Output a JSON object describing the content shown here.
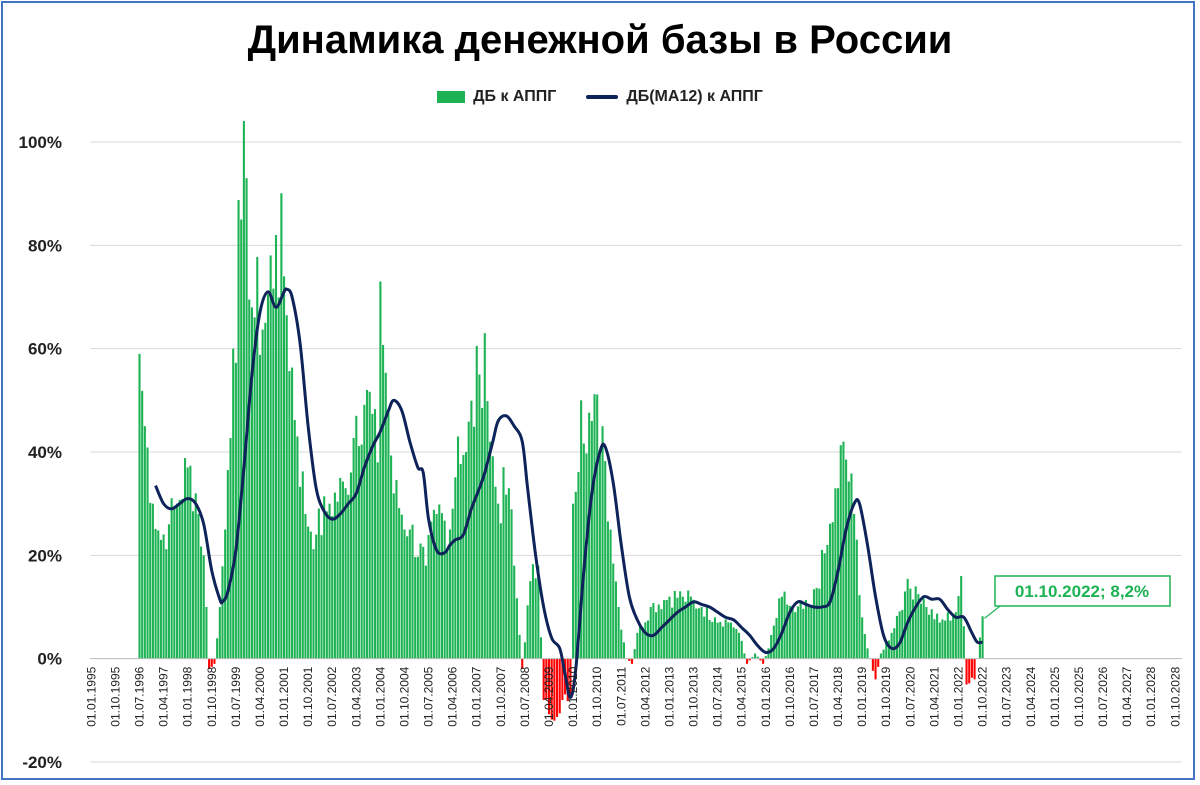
{
  "chart_data": {
    "type": "bar",
    "title": "Динамика денежной базы в России",
    "series": [
      {
        "name": "ДБ к АППГ",
        "kind": "bar",
        "color": "#1db354",
        "negative_color": "#ff0000"
      },
      {
        "name": "ДБ(МА12) к АППГ",
        "kind": "line",
        "color": "#0d2359"
      }
    ],
    "ylim": [
      -0.2,
      1.0
    ],
    "yticks": [
      "-20%",
      "0%",
      "20%",
      "40%",
      "60%",
      "80%",
      "100%"
    ],
    "ytick_values": [
      -0.2,
      0,
      0.2,
      0.4,
      0.6,
      0.8,
      1.0
    ],
    "x_range": [
      "1995-01",
      "2028-12"
    ],
    "xtick_labels": [
      "01.01.1995",
      "01.10.1995",
      "01.07.1996",
      "01.04.1997",
      "01.01.1998",
      "01.10.1998",
      "01.07.1999",
      "01.04.2000",
      "01.01.2001",
      "01.10.2001",
      "01.07.2002",
      "01.04.2003",
      "01.01.2004",
      "01.10.2004",
      "01.07.2005",
      "01.04.2006",
      "01.01.2007",
      "01.10.2007",
      "01.07.2008",
      "01.04.2009",
      "01.01.2010",
      "01.10.2010",
      "01.07.2011",
      "01.04.2012",
      "01.01.2013",
      "01.10.2013",
      "01.07.2014",
      "01.04.2015",
      "01.01.2016",
      "01.10.2016",
      "01.07.2017",
      "01.04.2018",
      "01.01.2019",
      "01.10.2019",
      "01.07.2020",
      "01.04.2021",
      "01.01.2022",
      "01.10.2022",
      "01.07.2023",
      "01.04.2024",
      "01.01.2025",
      "01.10.2025",
      "01.07.2026",
      "01.04.2027",
      "01.01.2028",
      "01.10.2028"
    ],
    "bar_keypoints": [
      [
        "1996-07",
        0.59
      ],
      [
        "1996-09",
        0.45
      ],
      [
        "1996-12",
        0.3
      ],
      [
        "1997-03",
        0.23
      ],
      [
        "1997-06",
        0.26
      ],
      [
        "1997-09",
        0.3
      ],
      [
        "1998-01",
        0.37
      ],
      [
        "1998-04",
        0.32
      ],
      [
        "1998-07",
        0.2
      ],
      [
        "1998-08",
        0.1
      ],
      [
        "1998-09",
        -0.02
      ],
      [
        "1998-11",
        -0.01
      ],
      [
        "1999-01",
        0.1
      ],
      [
        "1999-03",
        0.25
      ],
      [
        "1999-06",
        0.6
      ],
      [
        "1999-09",
        0.85
      ],
      [
        "1999-11",
        0.93
      ],
      [
        "2000-01",
        0.68
      ],
      [
        "2000-06",
        0.65
      ],
      [
        "2000-10",
        0.82
      ],
      [
        "2001-01",
        0.74
      ],
      [
        "2001-06",
        0.43
      ],
      [
        "2001-09",
        0.28
      ],
      [
        "2002-01",
        0.24
      ],
      [
        "2002-06",
        0.3
      ],
      [
        "2002-12",
        0.33
      ],
      [
        "2003-04",
        0.47
      ],
      [
        "2003-08",
        0.52
      ],
      [
        "2003-12",
        0.38
      ],
      [
        "2004-01",
        0.73
      ],
      [
        "2004-06",
        0.32
      ],
      [
        "2004-12",
        0.25
      ],
      [
        "2005-06",
        0.18
      ],
      [
        "2005-10",
        0.28
      ],
      [
        "2006-03",
        0.25
      ],
      [
        "2006-06",
        0.43
      ],
      [
        "2006-09",
        0.4
      ],
      [
        "2007-02",
        0.55
      ],
      [
        "2007-04",
        0.63
      ],
      [
        "2007-06",
        0.42
      ],
      [
        "2007-09",
        0.3
      ],
      [
        "2008-01",
        0.33
      ],
      [
        "2008-03",
        0.18
      ],
      [
        "2008-06",
        -0.02
      ],
      [
        "2008-09",
        0.15
      ],
      [
        "2008-12",
        0.18
      ],
      [
        "2009-02",
        -0.08
      ],
      [
        "2009-06",
        -0.12
      ],
      [
        "2009-09",
        -0.08
      ],
      [
        "2009-12",
        -0.07
      ],
      [
        "2010-01",
        0.3
      ],
      [
        "2010-04",
        0.5
      ],
      [
        "2010-08",
        0.46
      ],
      [
        "2010-12",
        0.45
      ],
      [
        "2011-03",
        0.25
      ],
      [
        "2011-06",
        0.1
      ],
      [
        "2011-09",
        0.0
      ],
      [
        "2011-11",
        -0.01
      ],
      [
        "2012-01",
        0.05
      ],
      [
        "2012-06",
        0.1
      ],
      [
        "2013-01",
        0.12
      ],
      [
        "2013-06",
        0.12
      ],
      [
        "2014-01",
        0.1
      ],
      [
        "2014-06",
        0.08
      ],
      [
        "2014-12",
        0.07
      ],
      [
        "2015-03",
        0.05
      ],
      [
        "2015-06",
        -0.01
      ],
      [
        "2015-09",
        0.01
      ],
      [
        "2015-12",
        -0.01
      ],
      [
        "2016-02",
        0.02
      ],
      [
        "2016-07",
        0.12
      ],
      [
        "2016-12",
        0.09
      ],
      [
        "2017-06",
        0.1
      ],
      [
        "2017-12",
        0.22
      ],
      [
        "2018-04",
        0.33
      ],
      [
        "2018-06",
        0.42
      ],
      [
        "2018-10",
        0.28
      ],
      [
        "2019-01",
        0.08
      ],
      [
        "2019-03",
        0.02
      ],
      [
        "2019-06",
        -0.04
      ],
      [
        "2019-08",
        0.01
      ],
      [
        "2019-12",
        0.05
      ],
      [
        "2020-05",
        0.13
      ],
      [
        "2020-09",
        0.14
      ],
      [
        "2021-01",
        0.1
      ],
      [
        "2021-06",
        0.07
      ],
      [
        "2021-12",
        0.09
      ],
      [
        "2022-02",
        0.16
      ],
      [
        "2022-04",
        -0.05
      ],
      [
        "2022-07",
        -0.04
      ],
      [
        "2022-10",
        0.082
      ]
    ],
    "ma_keypoints": [
      [
        "1997-01",
        0.335
      ],
      [
        "1997-04",
        0.3
      ],
      [
        "1997-07",
        0.29
      ],
      [
        "1997-10",
        0.3
      ],
      [
        "1998-01",
        0.31
      ],
      [
        "1998-04",
        0.3
      ],
      [
        "1998-07",
        0.26
      ],
      [
        "1998-10",
        0.17
      ],
      [
        "1999-01",
        0.115
      ],
      [
        "1999-02",
        0.11
      ],
      [
        "1999-04",
        0.13
      ],
      [
        "1999-07",
        0.21
      ],
      [
        "1999-10",
        0.37
      ],
      [
        "2000-01",
        0.55
      ],
      [
        "2000-04",
        0.67
      ],
      [
        "2000-07",
        0.71
      ],
      [
        "2000-10",
        0.68
      ],
      [
        "2001-01",
        0.71
      ],
      [
        "2001-02",
        0.715
      ],
      [
        "2001-04",
        0.7
      ],
      [
        "2001-07",
        0.61
      ],
      [
        "2001-10",
        0.45
      ],
      [
        "2002-01",
        0.33
      ],
      [
        "2002-04",
        0.285
      ],
      [
        "2002-07",
        0.27
      ],
      [
        "2002-10",
        0.28
      ],
      [
        "2003-01",
        0.3
      ],
      [
        "2003-04",
        0.32
      ],
      [
        "2003-07",
        0.37
      ],
      [
        "2003-10",
        0.41
      ],
      [
        "2004-01",
        0.44
      ],
      [
        "2004-04",
        0.48
      ],
      [
        "2004-06",
        0.5
      ],
      [
        "2004-09",
        0.48
      ],
      [
        "2004-12",
        0.42
      ],
      [
        "2005-03",
        0.37
      ],
      [
        "2005-05",
        0.36
      ],
      [
        "2005-07",
        0.27
      ],
      [
        "2005-10",
        0.21
      ],
      [
        "2006-01",
        0.205
      ],
      [
        "2006-03",
        0.22
      ],
      [
        "2006-05",
        0.23
      ],
      [
        "2006-08",
        0.24
      ],
      [
        "2006-11",
        0.29
      ],
      [
        "2007-02",
        0.33
      ],
      [
        "2007-04",
        0.36
      ],
      [
        "2007-07",
        0.42
      ],
      [
        "2007-09",
        0.46
      ],
      [
        "2007-12",
        0.47
      ],
      [
        "2008-03",
        0.45
      ],
      [
        "2008-06",
        0.42
      ],
      [
        "2008-08",
        0.33
      ],
      [
        "2008-11",
        0.2
      ],
      [
        "2009-02",
        0.1
      ],
      [
        "2009-05",
        0.04
      ],
      [
        "2009-08",
        0.02
      ],
      [
        "2009-10",
        -0.03
      ],
      [
        "2009-12",
        -0.075
      ],
      [
        "2010-02",
        -0.02
      ],
      [
        "2010-05",
        0.17
      ],
      [
        "2010-08",
        0.32
      ],
      [
        "2010-11",
        0.4
      ],
      [
        "2011-01",
        0.41
      ],
      [
        "2011-04",
        0.34
      ],
      [
        "2011-07",
        0.22
      ],
      [
        "2011-10",
        0.12
      ],
      [
        "2012-01",
        0.075
      ],
      [
        "2012-04",
        0.05
      ],
      [
        "2012-07",
        0.045
      ],
      [
        "2012-10",
        0.06
      ],
      [
        "2013-01",
        0.075
      ],
      [
        "2013-04",
        0.09
      ],
      [
        "2013-07",
        0.1
      ],
      [
        "2013-10",
        0.11
      ],
      [
        "2014-01",
        0.105
      ],
      [
        "2014-04",
        0.1
      ],
      [
        "2014-07",
        0.09
      ],
      [
        "2014-10",
        0.08
      ],
      [
        "2015-01",
        0.075
      ],
      [
        "2015-04",
        0.06
      ],
      [
        "2015-07",
        0.045
      ],
      [
        "2015-10",
        0.025
      ],
      [
        "2016-01",
        0.012
      ],
      [
        "2016-04",
        0.02
      ],
      [
        "2016-07",
        0.05
      ],
      [
        "2016-10",
        0.09
      ],
      [
        "2017-01",
        0.11
      ],
      [
        "2017-04",
        0.105
      ],
      [
        "2017-07",
        0.1
      ],
      [
        "2017-10",
        0.1
      ],
      [
        "2018-01",
        0.11
      ],
      [
        "2018-04",
        0.17
      ],
      [
        "2018-07",
        0.25
      ],
      [
        "2018-10",
        0.3
      ],
      [
        "2018-12",
        0.3
      ],
      [
        "2019-03",
        0.22
      ],
      [
        "2019-06",
        0.12
      ],
      [
        "2019-09",
        0.045
      ],
      [
        "2019-12",
        0.02
      ],
      [
        "2020-03",
        0.03
      ],
      [
        "2020-06",
        0.07
      ],
      [
        "2020-09",
        0.1
      ],
      [
        "2020-12",
        0.12
      ],
      [
        "2021-03",
        0.115
      ],
      [
        "2021-06",
        0.115
      ],
      [
        "2021-09",
        0.095
      ],
      [
        "2021-12",
        0.08
      ],
      [
        "2022-03",
        0.08
      ],
      [
        "2022-06",
        0.05
      ],
      [
        "2022-08",
        0.032
      ],
      [
        "2022-10",
        0.032
      ]
    ],
    "annotation": {
      "text": "01.10.2022; 8,2%",
      "date": "2022-10",
      "value": 0.082,
      "color": "#1db354"
    }
  }
}
